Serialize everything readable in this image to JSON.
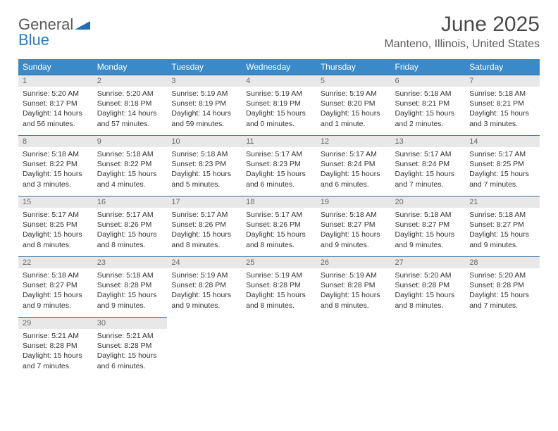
{
  "logo": {
    "line1": "General",
    "line2": "Blue"
  },
  "title": "June 2025",
  "location": "Manteno, Illinois, United States",
  "colors": {
    "header_bg": "#3a8ac9",
    "header_text": "#ffffff",
    "daynum_bg": "#e8e8e8",
    "daynum_text": "#6a6a6a",
    "border": "#3a6fa0",
    "body_text": "#333333",
    "logo_gray": "#5a5a5a",
    "logo_blue": "#2b7bbf"
  },
  "weekdays": [
    "Sunday",
    "Monday",
    "Tuesday",
    "Wednesday",
    "Thursday",
    "Friday",
    "Saturday"
  ],
  "days": [
    {
      "n": 1,
      "sr": "5:20 AM",
      "ss": "8:17 PM",
      "dl": "14 hours and 56 minutes."
    },
    {
      "n": 2,
      "sr": "5:20 AM",
      "ss": "8:18 PM",
      "dl": "14 hours and 57 minutes."
    },
    {
      "n": 3,
      "sr": "5:19 AM",
      "ss": "8:19 PM",
      "dl": "14 hours and 59 minutes."
    },
    {
      "n": 4,
      "sr": "5:19 AM",
      "ss": "8:19 PM",
      "dl": "15 hours and 0 minutes."
    },
    {
      "n": 5,
      "sr": "5:19 AM",
      "ss": "8:20 PM",
      "dl": "15 hours and 1 minute."
    },
    {
      "n": 6,
      "sr": "5:18 AM",
      "ss": "8:21 PM",
      "dl": "15 hours and 2 minutes."
    },
    {
      "n": 7,
      "sr": "5:18 AM",
      "ss": "8:21 PM",
      "dl": "15 hours and 3 minutes."
    },
    {
      "n": 8,
      "sr": "5:18 AM",
      "ss": "8:22 PM",
      "dl": "15 hours and 3 minutes."
    },
    {
      "n": 9,
      "sr": "5:18 AM",
      "ss": "8:22 PM",
      "dl": "15 hours and 4 minutes."
    },
    {
      "n": 10,
      "sr": "5:18 AM",
      "ss": "8:23 PM",
      "dl": "15 hours and 5 minutes."
    },
    {
      "n": 11,
      "sr": "5:17 AM",
      "ss": "8:23 PM",
      "dl": "15 hours and 6 minutes."
    },
    {
      "n": 12,
      "sr": "5:17 AM",
      "ss": "8:24 PM",
      "dl": "15 hours and 6 minutes."
    },
    {
      "n": 13,
      "sr": "5:17 AM",
      "ss": "8:24 PM",
      "dl": "15 hours and 7 minutes."
    },
    {
      "n": 14,
      "sr": "5:17 AM",
      "ss": "8:25 PM",
      "dl": "15 hours and 7 minutes."
    },
    {
      "n": 15,
      "sr": "5:17 AM",
      "ss": "8:25 PM",
      "dl": "15 hours and 8 minutes."
    },
    {
      "n": 16,
      "sr": "5:17 AM",
      "ss": "8:26 PM",
      "dl": "15 hours and 8 minutes."
    },
    {
      "n": 17,
      "sr": "5:17 AM",
      "ss": "8:26 PM",
      "dl": "15 hours and 8 minutes."
    },
    {
      "n": 18,
      "sr": "5:17 AM",
      "ss": "8:26 PM",
      "dl": "15 hours and 8 minutes."
    },
    {
      "n": 19,
      "sr": "5:18 AM",
      "ss": "8:27 PM",
      "dl": "15 hours and 9 minutes."
    },
    {
      "n": 20,
      "sr": "5:18 AM",
      "ss": "8:27 PM",
      "dl": "15 hours and 9 minutes."
    },
    {
      "n": 21,
      "sr": "5:18 AM",
      "ss": "8:27 PM",
      "dl": "15 hours and 9 minutes."
    },
    {
      "n": 22,
      "sr": "5:18 AM",
      "ss": "8:27 PM",
      "dl": "15 hours and 9 minutes."
    },
    {
      "n": 23,
      "sr": "5:18 AM",
      "ss": "8:28 PM",
      "dl": "15 hours and 9 minutes."
    },
    {
      "n": 24,
      "sr": "5:19 AM",
      "ss": "8:28 PM",
      "dl": "15 hours and 9 minutes."
    },
    {
      "n": 25,
      "sr": "5:19 AM",
      "ss": "8:28 PM",
      "dl": "15 hours and 8 minutes."
    },
    {
      "n": 26,
      "sr": "5:19 AM",
      "ss": "8:28 PM",
      "dl": "15 hours and 8 minutes."
    },
    {
      "n": 27,
      "sr": "5:20 AM",
      "ss": "8:28 PM",
      "dl": "15 hours and 8 minutes."
    },
    {
      "n": 28,
      "sr": "5:20 AM",
      "ss": "8:28 PM",
      "dl": "15 hours and 7 minutes."
    },
    {
      "n": 29,
      "sr": "5:21 AM",
      "ss": "8:28 PM",
      "dl": "15 hours and 7 minutes."
    },
    {
      "n": 30,
      "sr": "5:21 AM",
      "ss": "8:28 PM",
      "dl": "15 hours and 6 minutes."
    }
  ],
  "labels": {
    "sunrise": "Sunrise:",
    "sunset": "Sunset:",
    "daylight": "Daylight:"
  }
}
